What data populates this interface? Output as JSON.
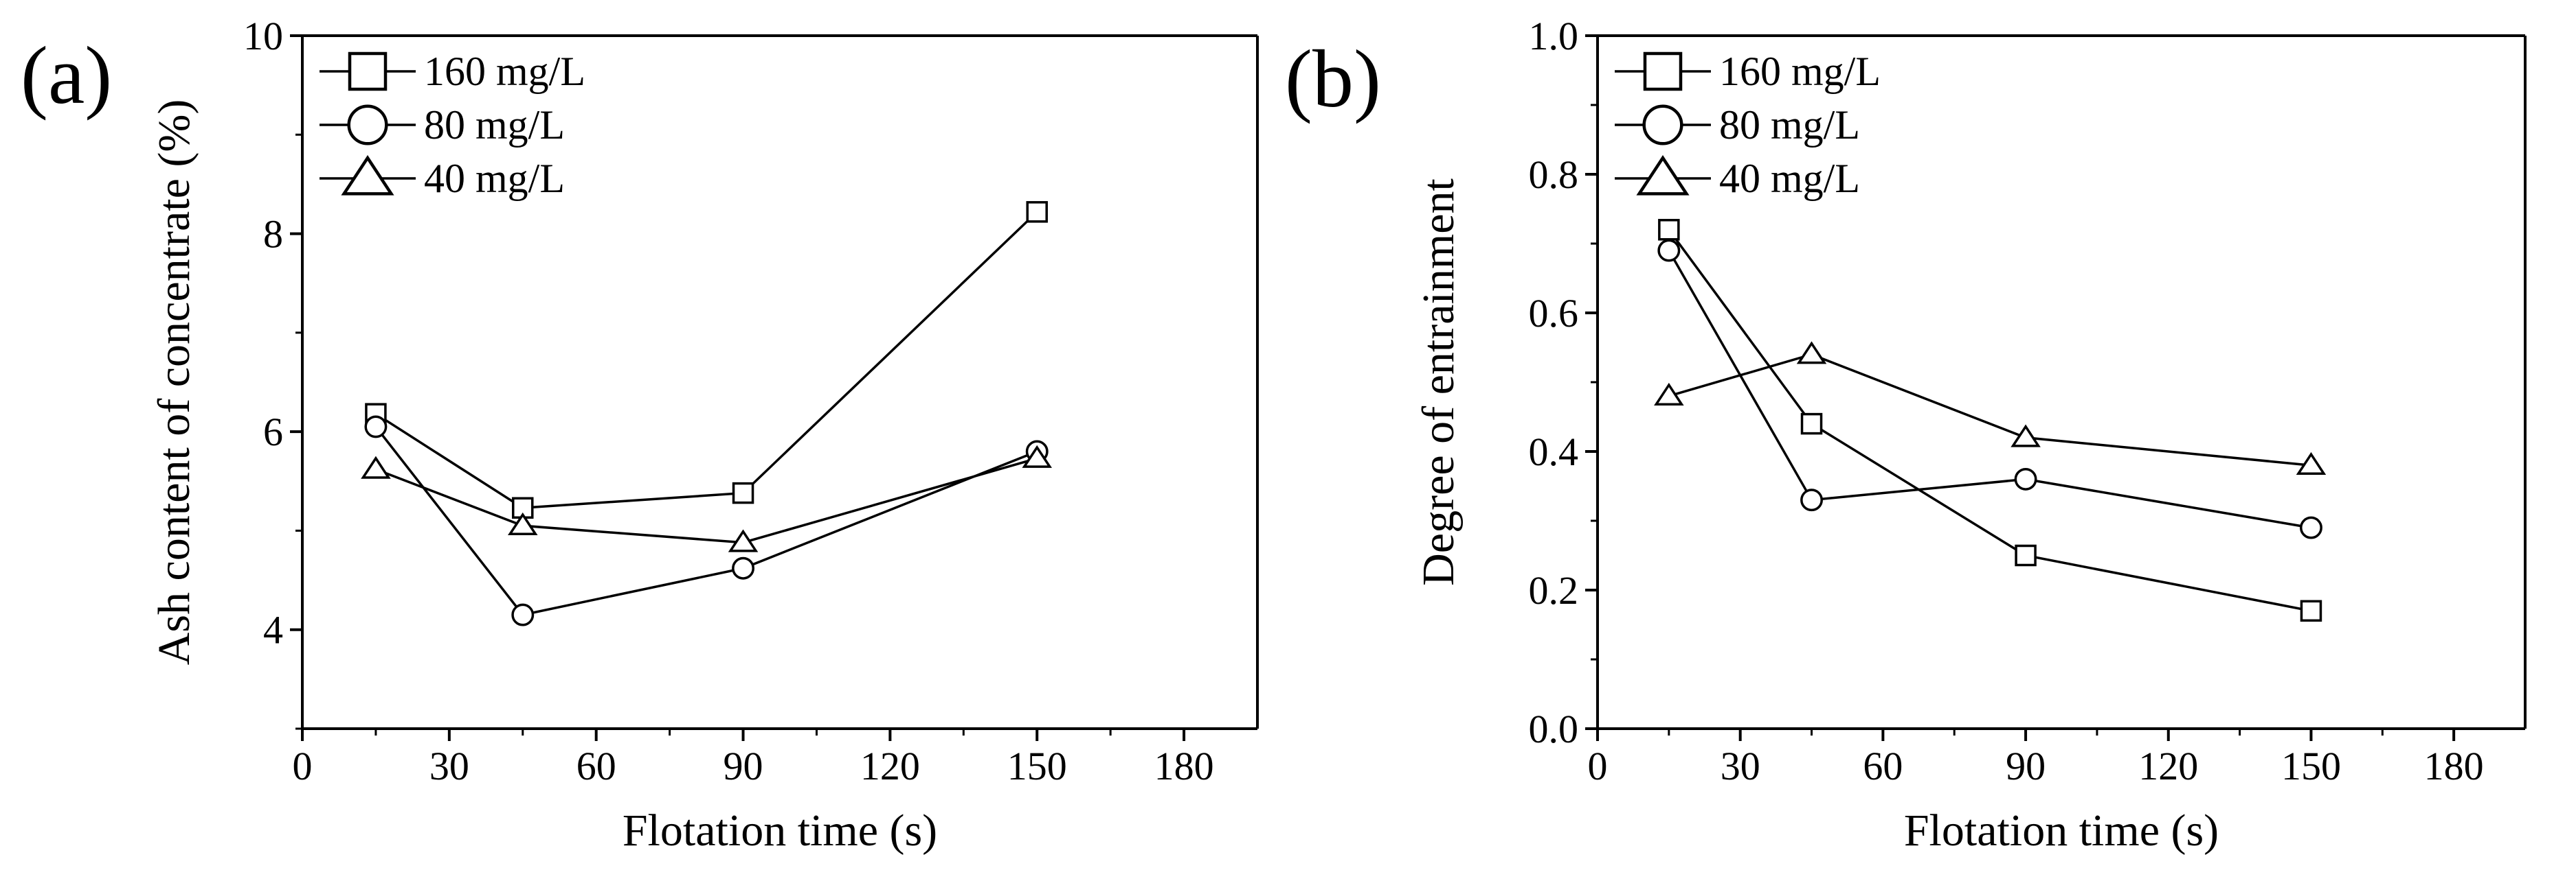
{
  "chart_data": [
    {
      "panel": "(a)",
      "type": "line",
      "title": "",
      "xlabel": "Flotation time (s)",
      "ylabel": "Ash content of concentrate (%)",
      "xlim": [
        0,
        195
      ],
      "ylim": [
        3,
        10
      ],
      "xticks": [
        0,
        30,
        60,
        90,
        120,
        150,
        180
      ],
      "yticks": [
        4,
        6,
        8,
        10
      ],
      "x": [
        15,
        45,
        90,
        150
      ],
      "legend_position": "top-left",
      "series": [
        {
          "name": "160 mg/L",
          "marker": "square",
          "values": [
            6.18,
            5.23,
            5.38,
            8.22
          ]
        },
        {
          "name": "80 mg/L",
          "marker": "circle",
          "values": [
            6.05,
            4.15,
            4.62,
            5.8
          ]
        },
        {
          "name": "40 mg/L",
          "marker": "triangle",
          "values": [
            5.62,
            5.05,
            4.88,
            5.73
          ]
        }
      ]
    },
    {
      "panel": "(b)",
      "type": "line",
      "title": "",
      "xlabel": "Flotation time (s)",
      "ylabel": "Degree of entrainment",
      "xlim": [
        0,
        195
      ],
      "ylim": [
        0,
        1
      ],
      "xticks": [
        0,
        30,
        60,
        90,
        120,
        150,
        180
      ],
      "yticks": [
        0.0,
        0.2,
        0.4,
        0.6,
        0.8,
        1.0
      ],
      "x": [
        15,
        45,
        90,
        150
      ],
      "legend_position": "top-left",
      "series": [
        {
          "name": "160 mg/L",
          "marker": "square",
          "values": [
            0.72,
            0.44,
            0.25,
            0.17
          ]
        },
        {
          "name": "80 mg/L",
          "marker": "circle",
          "values": [
            0.69,
            0.33,
            0.36,
            0.29
          ]
        },
        {
          "name": "40 mg/L",
          "marker": "triangle",
          "values": [
            0.48,
            0.54,
            0.42,
            0.38
          ]
        }
      ]
    }
  ]
}
